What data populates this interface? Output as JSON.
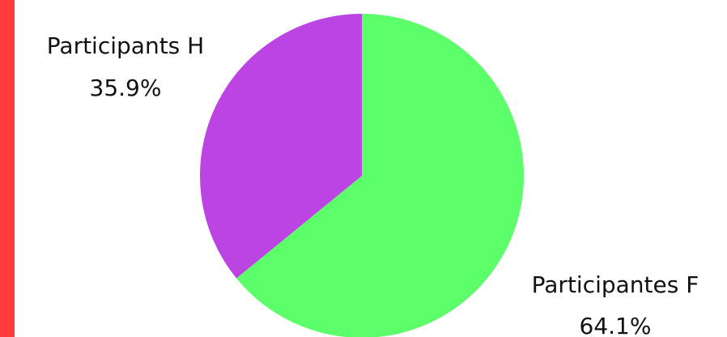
{
  "colors": {
    "accent_bar": "#ff3b3b",
    "background": "#ffffff"
  },
  "chart_data": {
    "type": "pie",
    "title": "",
    "slices": [
      {
        "label": "Participantes F",
        "value": 64.1,
        "value_text": "64.1%",
        "color": "#5cff69"
      },
      {
        "label": "Participants H",
        "value": 35.9,
        "value_text": "35.9%",
        "color": "#bb44e2"
      }
    ],
    "start_angle": "12 o'clock",
    "direction": "clockwise",
    "legend": "none"
  }
}
